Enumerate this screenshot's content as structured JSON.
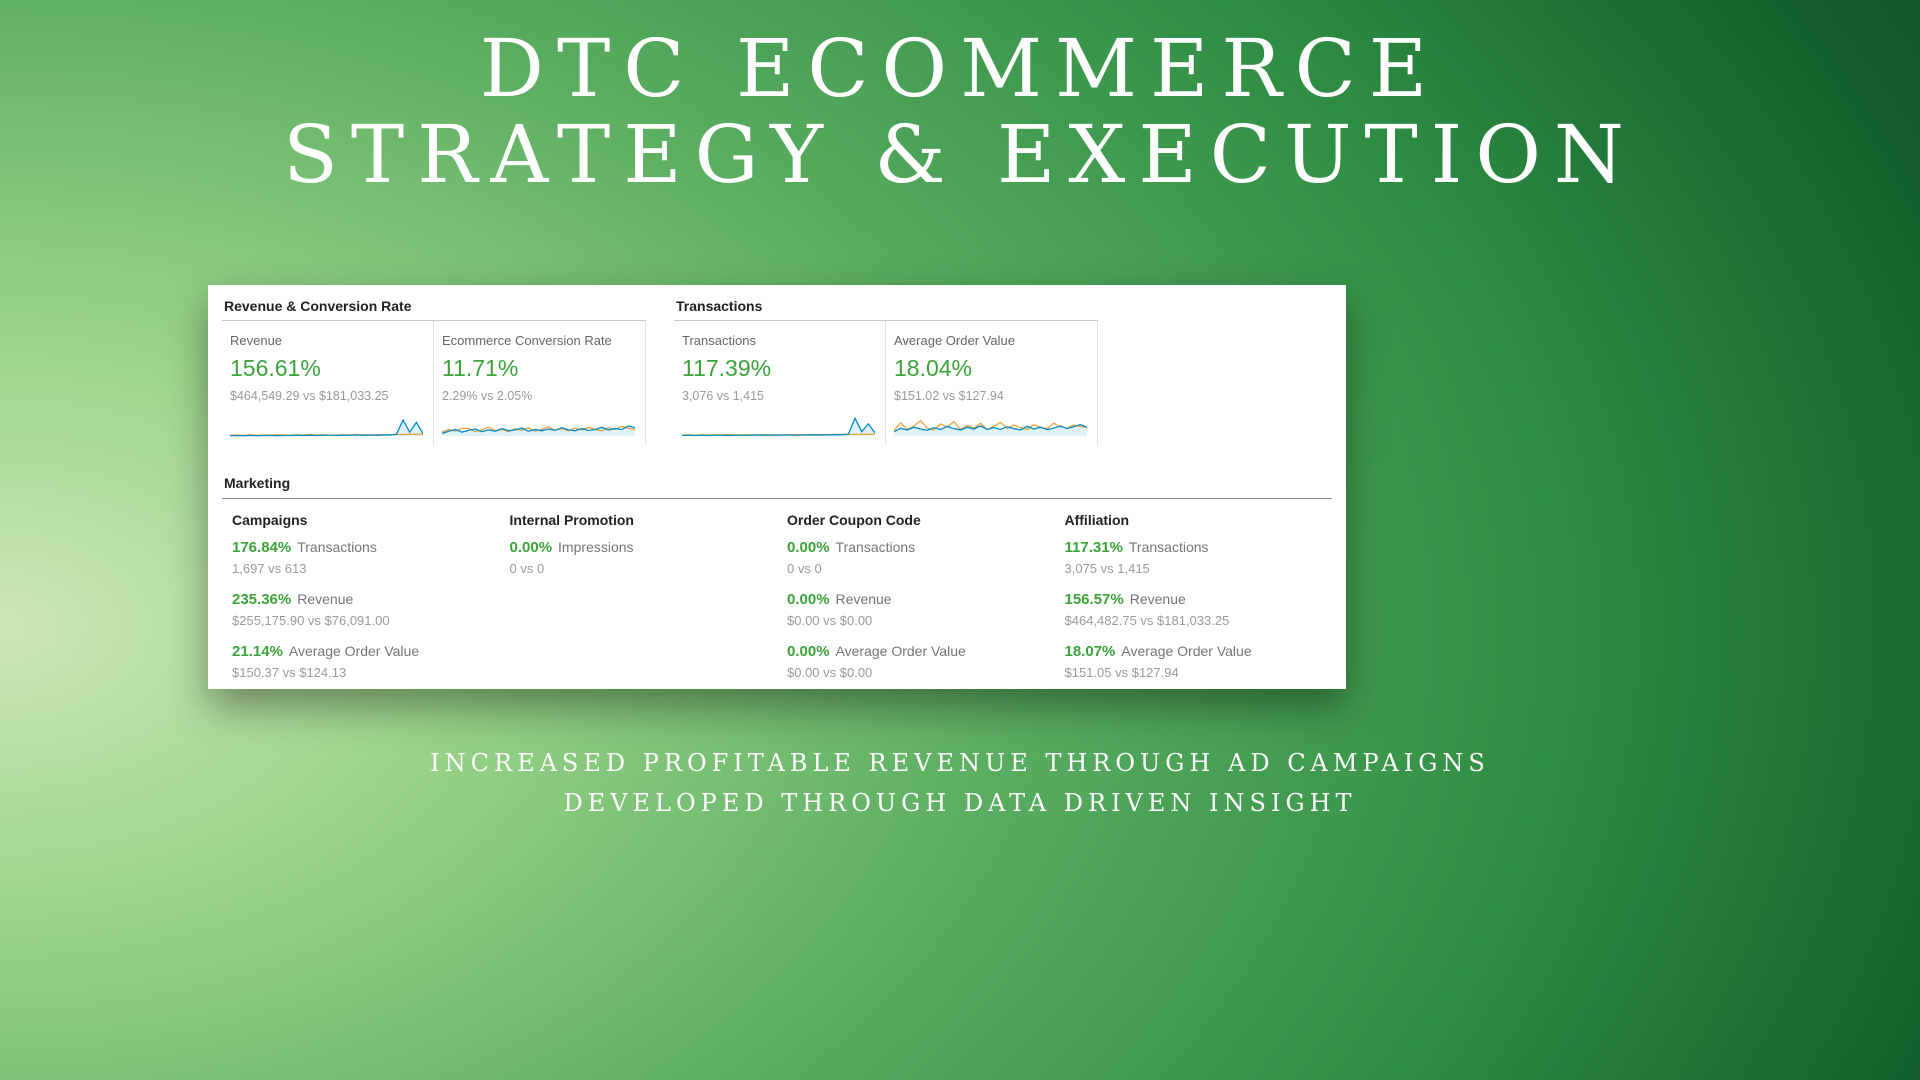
{
  "slide": {
    "title_line1": "DTC ECOMMERCE",
    "title_line2": "STRATEGY & EXECUTION",
    "footer_line1": "INCREASED PROFITABLE REVENUE THROUGH AD CAMPAIGNS",
    "footer_line2": "DEVELOPED THROUGH DATA DRIVEN INSIGHT"
  },
  "colors": {
    "positive": "#3aa33a",
    "spark_current": "#058dc7",
    "spark_previous": "#e8a33d"
  },
  "dashboard": {
    "sections": [
      {
        "title": "Revenue & Conversion Rate",
        "metrics": [
          {
            "label": "Revenue",
            "delta": "156.61%",
            "compare": "$464,549.29 vs $181,033.25"
          },
          {
            "label": "Ecommerce Conversion Rate",
            "delta": "11.71%",
            "compare": "2.29% vs 2.05%"
          }
        ]
      },
      {
        "title": "Transactions",
        "metrics": [
          {
            "label": "Transactions",
            "delta": "117.39%",
            "compare": "3,076 vs 1,415"
          },
          {
            "label": "Average Order Value",
            "delta": "18.04%",
            "compare": "$151.02 vs $127.94"
          }
        ]
      }
    ],
    "marketing": {
      "title": "Marketing",
      "columns": [
        {
          "title": "Campaigns",
          "rows": [
            {
              "delta": "176.84%",
              "label": "Transactions",
              "compare": "1,697 vs 613"
            },
            {
              "delta": "235.36%",
              "label": "Revenue",
              "compare": "$255,175.90 vs $76,091.00"
            },
            {
              "delta": "21.14%",
              "label": "Average Order Value",
              "compare": "$150.37 vs $124.13"
            }
          ]
        },
        {
          "title": "Internal Promotion",
          "rows": [
            {
              "delta": "0.00%",
              "label": "Impressions",
              "compare": "0 vs 0"
            }
          ]
        },
        {
          "title": "Order Coupon Code",
          "rows": [
            {
              "delta": "0.00%",
              "label": "Transactions",
              "compare": "0 vs 0"
            },
            {
              "delta": "0.00%",
              "label": "Revenue",
              "compare": "$0.00 vs $0.00"
            },
            {
              "delta": "0.00%",
              "label": "Average Order Value",
              "compare": "$0.00 vs $0.00"
            }
          ]
        },
        {
          "title": "Affiliation",
          "rows": [
            {
              "delta": "117.31%",
              "label": "Transactions",
              "compare": "3,075 vs 1,415"
            },
            {
              "delta": "156.57%",
              "label": "Revenue",
              "compare": "$464,482.75 vs $181,033.25"
            },
            {
              "delta": "18.07%",
              "label": "Average Order Value",
              "compare": "$151.05 vs $127.94"
            }
          ]
        }
      ]
    },
    "sparklines": {
      "revenue": {
        "previous": [
          4,
          5,
          3,
          6,
          4,
          5,
          4,
          6,
          5,
          4,
          6,
          5,
          7,
          5,
          6,
          4,
          5,
          6,
          5,
          7,
          6,
          5,
          6,
          7,
          6,
          8,
          7,
          9,
          8,
          10
        ],
        "current": [
          2,
          3,
          2,
          3,
          2,
          3,
          3,
          2,
          3,
          3,
          4,
          3,
          4,
          3,
          4,
          4,
          3,
          4,
          4,
          5,
          4,
          5,
          4,
          5,
          6,
          8,
          72,
          18,
          62,
          12
        ]
      },
      "conversion": {
        "previous": [
          18,
          30,
          22,
          35,
          35,
          20,
          28,
          40,
          24,
          30,
          20,
          34,
          26,
          38,
          22,
          30,
          42,
          26,
          34,
          24,
          36,
          28,
          40,
          30,
          24,
          38,
          30,
          44,
          36,
          30
        ],
        "current": [
          12,
          22,
          30,
          18,
          26,
          32,
          20,
          28,
          22,
          34,
          24,
          28,
          36,
          22,
          30,
          24,
          32,
          26,
          38,
          28,
          24,
          34,
          26,
          30,
          40,
          28,
          34,
          30,
          46,
          38
        ]
      },
      "transactions": {
        "previous": [
          5,
          6,
          4,
          6,
          5,
          6,
          5,
          7,
          5,
          6,
          6,
          5,
          7,
          6,
          6,
          5,
          6,
          7,
          6,
          7,
          6,
          7,
          6,
          8,
          7,
          8,
          8,
          9,
          8,
          9
        ],
        "current": [
          3,
          4,
          3,
          4,
          3,
          4,
          4,
          3,
          4,
          4,
          4,
          5,
          4,
          5,
          4,
          5,
          5,
          4,
          5,
          5,
          6,
          5,
          6,
          6,
          7,
          9,
          80,
          20,
          55,
          15
        ]
      },
      "aov": {
        "previous": [
          25,
          60,
          30,
          45,
          70,
          35,
          28,
          55,
          40,
          65,
          30,
          48,
          36,
          58,
          30,
          44,
          62,
          34,
          50,
          38,
          30,
          52,
          40,
          34,
          58,
          42,
          36,
          50,
          44,
          38
        ],
        "current": [
          20,
          35,
          28,
          40,
          32,
          26,
          38,
          30,
          44,
          34,
          28,
          40,
          32,
          46,
          30,
          38,
          30,
          42,
          34,
          28,
          44,
          32,
          40,
          30,
          36,
          46,
          34,
          42,
          52,
          40
        ]
      }
    }
  }
}
